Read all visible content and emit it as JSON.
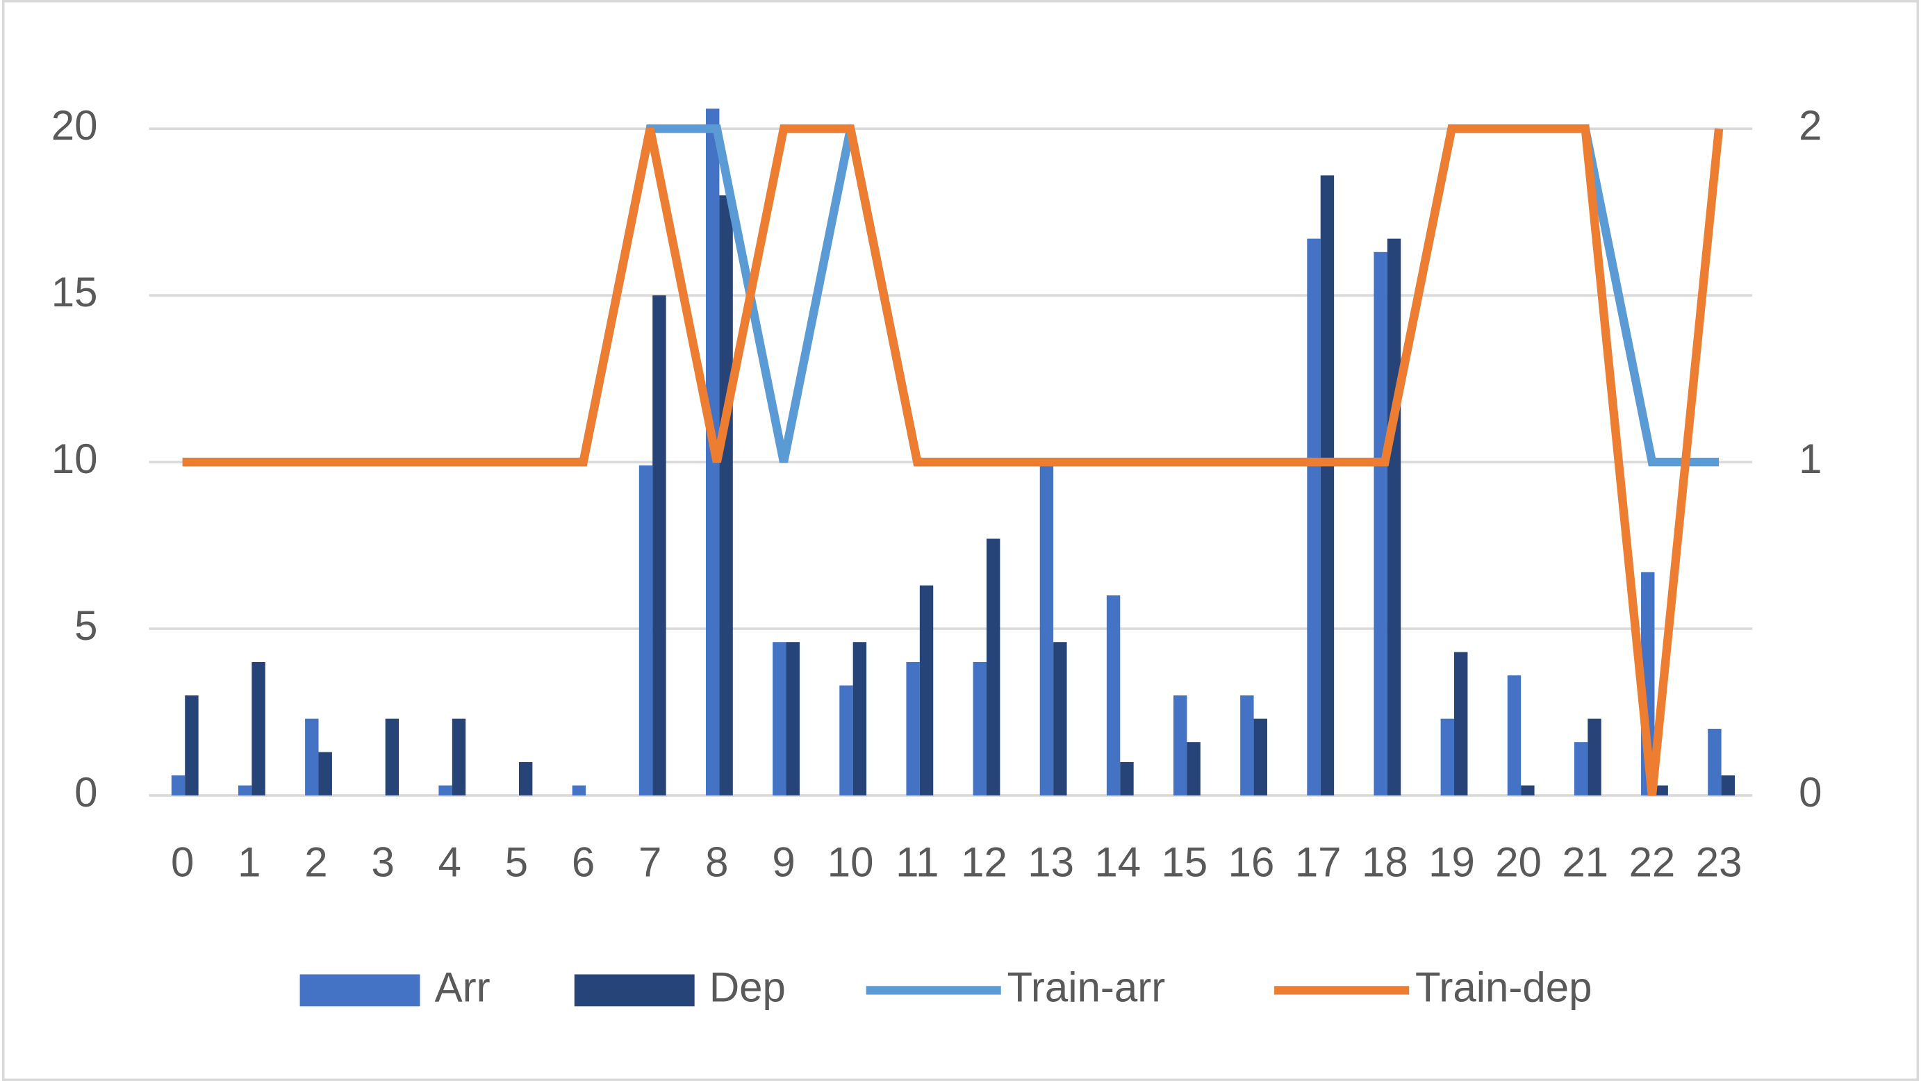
{
  "chart_data": {
    "type": "bar",
    "categories": [
      "0",
      "1",
      "2",
      "3",
      "4",
      "5",
      "6",
      "7",
      "8",
      "9",
      "10",
      "11",
      "12",
      "13",
      "14",
      "15",
      "16",
      "17",
      "18",
      "19",
      "20",
      "21",
      "22",
      "23"
    ],
    "series": [
      {
        "name": "Arr",
        "color": "#4472c4",
        "type": "bar",
        "values": [
          0.6,
          0.3,
          2.3,
          0,
          0.3,
          0,
          0.3,
          9.9,
          20.6,
          4.6,
          3.3,
          4,
          4,
          9.9,
          6,
          3,
          3,
          16.7,
          16.3,
          2.3,
          3.6,
          1.6,
          6.7,
          2
        ]
      },
      {
        "name": "Dep",
        "color": "#264478",
        "type": "bar",
        "values": [
          3,
          4,
          1.3,
          2.3,
          2.3,
          1,
          0,
          15,
          18,
          4.6,
          4.6,
          6.3,
          7.7,
          4.6,
          1,
          1.6,
          2.3,
          18.6,
          16.7,
          4.3,
          0.3,
          2.3,
          0.3,
          0.6
        ]
      },
      {
        "name": "Train-arr",
        "color": "#5b9bd5",
        "type": "line",
        "axis": "y2",
        "values": [
          1,
          1,
          1,
          1,
          1,
          1,
          1,
          2,
          2,
          1,
          2,
          1,
          1,
          1,
          1,
          1,
          1,
          1,
          1,
          2,
          2,
          2,
          1,
          1
        ]
      },
      {
        "name": "Train-dep",
        "color": "#ed7d31",
        "type": "line",
        "axis": "y2",
        "values": [
          1,
          1,
          1,
          1,
          1,
          1,
          1,
          2,
          1,
          2,
          2,
          1,
          1,
          1,
          1,
          1,
          1,
          1,
          1,
          2,
          2,
          2,
          0,
          2
        ]
      }
    ],
    "ylim": [
      0,
      20
    ],
    "yticks": [
      0,
      5,
      10,
      15,
      20
    ],
    "y2lim": [
      0,
      2
    ],
    "y2ticks": [
      0,
      1,
      2
    ],
    "grid": true,
    "legend": "bottom"
  }
}
